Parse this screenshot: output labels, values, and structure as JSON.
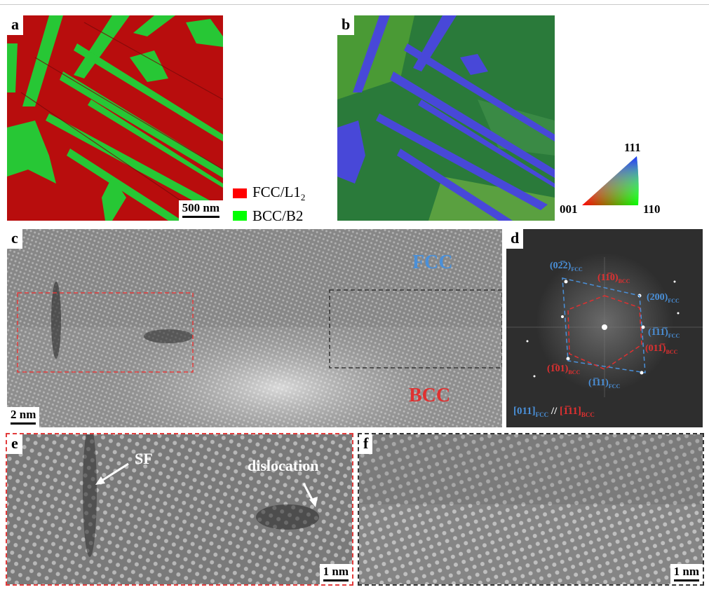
{
  "panels": {
    "a": {
      "label": "a",
      "scale": "500 nm"
    },
    "b": {
      "label": "b"
    },
    "c": {
      "label": "c",
      "scale": "2 nm",
      "phase_top": "FCC",
      "phase_bottom": "BCC"
    },
    "d": {
      "label": "d"
    },
    "e": {
      "label": "e",
      "scale": "1 nm",
      "annot_sf": "SF",
      "annot_dislocation": "dislocation"
    },
    "f": {
      "label": "f",
      "scale": "1 nm"
    }
  },
  "legend": [
    {
      "name": "FCC/L1",
      "sub": "2",
      "color": "#ff0000"
    },
    {
      "name": "BCC/B2",
      "sub": "",
      "color": "#00ff00"
    }
  ],
  "ipf": {
    "top": "111",
    "left": "001",
    "right": "110"
  },
  "fft_spots": {
    "s022": {
      "idx": "(02̅2)",
      "sub": "FCC",
      "color": "#4a90d9"
    },
    "s110b": {
      "idx": "(11̅0)",
      "sub": "BCC",
      "color": "#e03030"
    },
    "s200": {
      "idx": "(200)",
      "sub": "FCC",
      "color": "#4a90d9"
    },
    "s111f": {
      "idx": "(1̅11̅)",
      "sub": "FCC",
      "color": "#4a90d9"
    },
    "s011b": {
      "idx": "(011̅)",
      "sub": "BCC",
      "color": "#e03030"
    },
    "s101b": {
      "idx": "(1̅01)",
      "sub": "BCC",
      "color": "#e03030"
    },
    "s111f2": {
      "idx": "(1̅11)",
      "sub": "FCC",
      "color": "#4a90d9"
    }
  },
  "relation": {
    "left": "[011]",
    "left_sub": "FCC",
    "sep": " // ",
    "right": "[1̅11]",
    "right_sub": "BCC"
  },
  "colors": {
    "fcc_blue": "#4a90d9",
    "bcc_red": "#e03030",
    "red_box": "#e23b3b",
    "black_box": "#333333"
  }
}
